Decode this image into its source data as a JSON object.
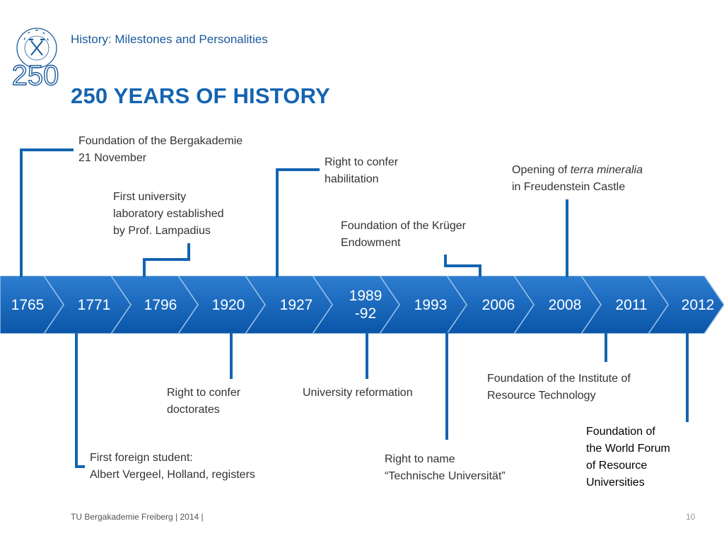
{
  "header": {
    "title": "History: Milestones and Personalities"
  },
  "page_title": "250 YEARS OF HISTORY",
  "logo": {
    "number": "250",
    "ring_text": "TU BERGAKADEMIE FREIBERG"
  },
  "timeline": {
    "years": [
      {
        "id": "1765",
        "line1": "1765",
        "line2": ""
      },
      {
        "id": "1771",
        "line1": "1771",
        "line2": ""
      },
      {
        "id": "1796",
        "line1": "1796",
        "line2": ""
      },
      {
        "id": "1920",
        "line1": "1920",
        "line2": ""
      },
      {
        "id": "1927",
        "line1": "1927",
        "line2": ""
      },
      {
        "id": "1989-92",
        "line1": "1989",
        "line2": "-92"
      },
      {
        "id": "1993",
        "line1": "1993",
        "line2": ""
      },
      {
        "id": "2006",
        "line1": "2006",
        "line2": ""
      },
      {
        "id": "2008",
        "line1": "2008",
        "line2": ""
      },
      {
        "id": "2011",
        "line1": "2011",
        "line2": ""
      },
      {
        "id": "2012",
        "line1": "2012",
        "line2": ""
      }
    ]
  },
  "events": {
    "e1765": {
      "line1": "Foundation of the Bergakademie",
      "line2": "21 November"
    },
    "e1771": {
      "line1": "First foreign student:",
      "line2": "Albert Vergeel, Holland, registers"
    },
    "e1796": {
      "line1": "First university",
      "line2": "laboratory established",
      "line3": "by Prof. Lampadius"
    },
    "e1920": {
      "line1": "Right to confer",
      "line2": "doctorates"
    },
    "e1927": {
      "line1": "Right to confer",
      "line2": "habilitation"
    },
    "e1989": {
      "line1": "University reformation"
    },
    "e1993": {
      "line1": "Right to name",
      "line2": "“Technische Universität”"
    },
    "e2006": {
      "line1": "Foundation of the Krüger",
      "line2": "Endowment"
    },
    "e2008": {
      "line1a": "Opening of ",
      "line1b": "terra mineralia",
      "line2": "in Freudenstein Castle"
    },
    "e2011": {
      "line1": "Foundation of the Institute of",
      "line2": "Resource Technology"
    },
    "e2012": {
      "line1": "Foundation of",
      "line2": "the World Forum",
      "line3": "of Resource",
      "line4": "Universities"
    }
  },
  "footer": {
    "text": "TU Bergakademie Freiberg | 2014 |",
    "page": "10"
  },
  "colors": {
    "primary": "#1464b0",
    "arrow": "#1060b4",
    "separator": "#9cc2e6"
  }
}
